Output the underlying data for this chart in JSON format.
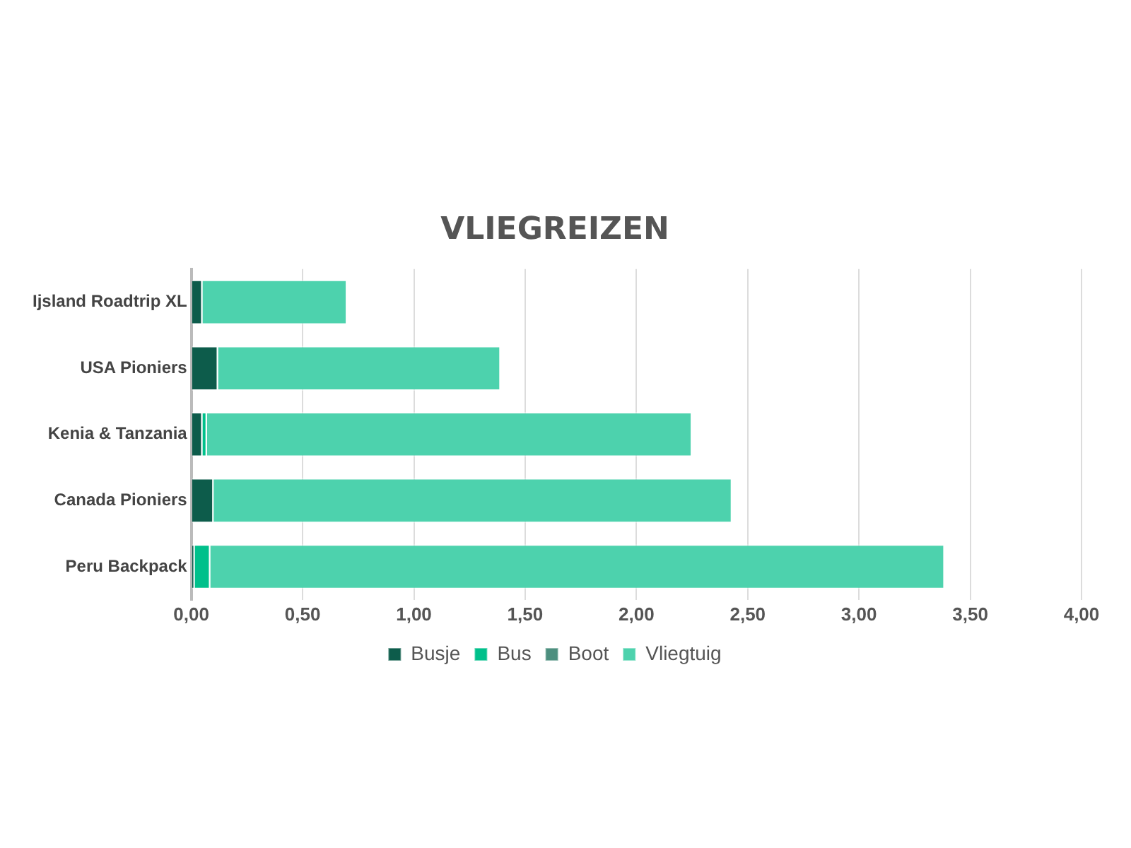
{
  "chart_data": {
    "type": "bar",
    "orientation": "horizontal",
    "stacked": true,
    "title": "VLIEGREIZEN",
    "categories": [
      "Ijsland Roadtrip XL",
      "USA Pioniers",
      "Kenia & Tanzania",
      "Canada Pioniers",
      "Peru Backpack"
    ],
    "series": [
      {
        "name": "Busje",
        "color": "#0d5c4b",
        "values": [
          0.05,
          0.12,
          0.05,
          0.1,
          0.015
        ]
      },
      {
        "name": "Bus",
        "color": "#00c08b",
        "values": [
          0,
          0,
          0.02,
          0,
          0.07
        ]
      },
      {
        "name": "Boot",
        "color": "#4d8f7f",
        "values": [
          0,
          0,
          0,
          0,
          0
        ]
      },
      {
        "name": "Vliegtuig",
        "color": "#4dd2ad",
        "values": [
          0.65,
          1.27,
          2.18,
          2.33,
          3.3
        ]
      }
    ],
    "xlim": [
      0,
      4
    ],
    "xticks": [
      {
        "value": 0,
        "label": "0,00"
      },
      {
        "value": 0.5,
        "label": "0,50"
      },
      {
        "value": 1,
        "label": "1,00"
      },
      {
        "value": 1.5,
        "label": "1,50"
      },
      {
        "value": 2,
        "label": "2,00"
      },
      {
        "value": 2.5,
        "label": "2,50"
      },
      {
        "value": 3,
        "label": "3,00"
      },
      {
        "value": 3.5,
        "label": "3,50"
      },
      {
        "value": 4,
        "label": "4,00"
      }
    ],
    "grid": "x",
    "legend": "bottom"
  }
}
